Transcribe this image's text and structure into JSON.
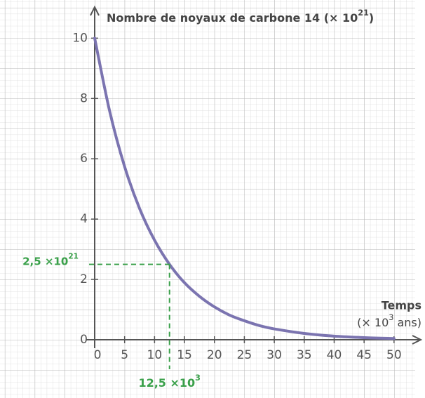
{
  "chart_data": {
    "type": "line",
    "y_label": {
      "text": "Nombre de noyaux de carbone 14 (× 10",
      "sup": "21",
      "end": ")"
    },
    "x_label": {
      "line1": "Temps",
      "text": "(× 10",
      "sup": "3",
      "end": " ans)"
    },
    "x": [
      0,
      2.5,
      5,
      7.5,
      10,
      12.5,
      15,
      17.5,
      20,
      22.5,
      25,
      27.5,
      30,
      35,
      40,
      45,
      50
    ],
    "series": [
      {
        "name": null,
        "color": "#7b74b0",
        "values": [
          10,
          7.58,
          5.74,
          4.35,
          3.3,
          2.5,
          1.89,
          1.44,
          1.09,
          0.82,
          0.63,
          0.47,
          0.36,
          0.21,
          0.12,
          0.07,
          0.04
        ]
      }
    ],
    "xlim": [
      0,
      54
    ],
    "ylim": [
      0,
      10.8
    ],
    "xticks": [
      0,
      5,
      10,
      15,
      20,
      25,
      30,
      35,
      40,
      45,
      50
    ],
    "yticks": [
      0,
      2,
      4,
      6,
      8,
      10
    ],
    "grid": true,
    "annotations": [
      {
        "x": 12.5,
        "y": 2.5,
        "color": "#3aa04a",
        "x_text": {
          "text": "12,5 ×10",
          "sup": "3"
        },
        "y_text": {
          "text": "2,5 ×10",
          "sup": "21"
        }
      }
    ]
  }
}
